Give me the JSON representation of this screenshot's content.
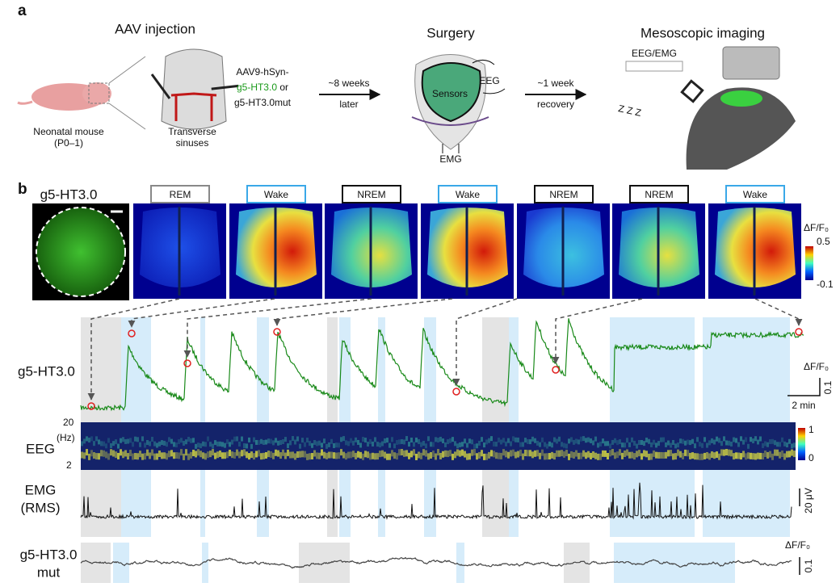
{
  "panel_a": {
    "label": "a",
    "injection": {
      "title": "AAV injection",
      "mouse": "Neonatal mouse",
      "age": "(P0–1)",
      "sinuses": [
        "Transverse",
        "sinuses"
      ]
    },
    "construct": {
      "vector": "AAV9-hSyn-",
      "sensor": "g5-HT3.0",
      "joiner": " or",
      "control": "g5-HT3.0mut"
    },
    "wait": [
      "~8 weeks",
      "later"
    ],
    "surgery": {
      "title": "Surgery",
      "sensors": "Sensors",
      "eeg": "EEG",
      "emg": "EMG"
    },
    "recovery": [
      "~1 week",
      "recovery"
    ],
    "imaging": {
      "title": "Mesoscopic imaging",
      "recording": "EEG/EMG",
      "sleep": "Z Z Z"
    }
  },
  "panel_b": {
    "label": "b",
    "sensor": "g5-HT3.0",
    "states": [
      "REM",
      "Wake",
      "NREM",
      "Wake",
      "NREM",
      "NREM",
      "Wake"
    ],
    "image_colorbar": {
      "title": "ΔF/F₀",
      "max": "0.5",
      "min": "-0.1"
    },
    "trace": {
      "label": "g5-HT3.0",
      "scale_title": "ΔF/F₀",
      "scale_y": "0.1",
      "scale_x": "2 min"
    },
    "eeg": {
      "label": "EEG",
      "top": "20",
      "unit": "(Hz)",
      "bottom": "2",
      "cbar_max": "1",
      "cbar_min": "0"
    },
    "emg": {
      "label": [
        "EMG",
        "(RMS)"
      ],
      "scale": "20 μV"
    },
    "mut": {
      "label": [
        "g5-HT3.0",
        "mut"
      ],
      "scale_title": "ΔF/F₀",
      "scale_y": "0.1"
    }
  }
}
